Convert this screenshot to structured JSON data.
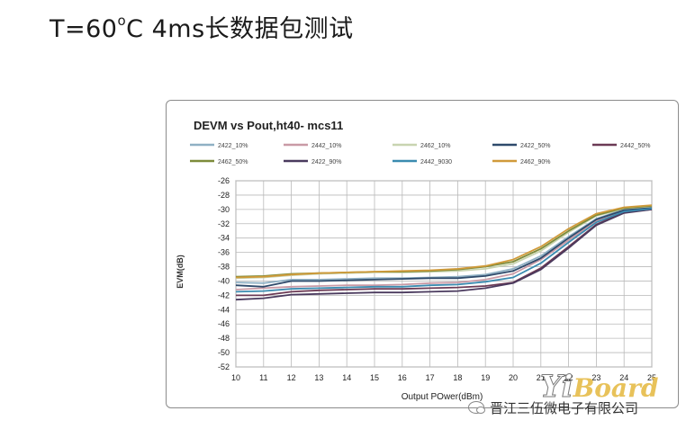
{
  "page": {
    "title_prefix": "T=60",
    "title_sup": "o",
    "title_rest": "C 4ms长数据包测试"
  },
  "chart_data": {
    "type": "line",
    "title": "DEVM vs Pout,ht40- mcs11",
    "xlabel": "Output  POwer(dBm)",
    "ylabel": "EVM(dB)",
    "x": [
      10,
      11,
      12,
      13,
      14,
      15,
      16,
      17,
      18,
      19,
      20,
      21,
      22,
      23,
      24,
      25
    ],
    "x_ticks": [
      "10",
      "11",
      "12",
      "13",
      "14",
      "15",
      "16",
      "17",
      "18",
      "19",
      "20",
      "21",
      "22",
      "23",
      "24",
      "25"
    ],
    "xlim": [
      10,
      25
    ],
    "ylim": [
      -52,
      -26
    ],
    "y_ticks": [
      -26,
      -28,
      -30,
      -32,
      -34,
      -36,
      -38,
      -40,
      -42,
      -44,
      -46,
      -48,
      -50,
      -52
    ],
    "y_tick_labels": [
      "-26",
      "-28",
      "-30",
      "-32",
      "-34",
      "-36",
      "-38",
      "-40",
      "-42",
      "-44",
      "-46",
      "-48",
      "-50",
      "-52"
    ],
    "grid": true,
    "legend_position": "top",
    "series": [
      {
        "name": "2422_10%",
        "color": "#8fb0c4",
        "values": [
          -40.2,
          -40.3,
          -39.8,
          -39.8,
          -39.7,
          -39.6,
          -39.6,
          -39.5,
          -39.4,
          -39.1,
          -38.3,
          -36.5,
          -33.8,
          -31.3,
          -30.0,
          -29.7
        ]
      },
      {
        "name": "2442_10%",
        "color": "#c99aa6",
        "values": [
          -41.2,
          -41.0,
          -40.8,
          -40.7,
          -40.6,
          -40.6,
          -40.5,
          -40.3,
          -40.2,
          -39.8,
          -39.0,
          -37.0,
          -34.3,
          -31.6,
          -30.2,
          -29.8
        ]
      },
      {
        "name": "2462_10%",
        "color": "#c8d4b0",
        "values": [
          -39.6,
          -39.5,
          -39.2,
          -39.0,
          -38.9,
          -38.8,
          -38.8,
          -38.7,
          -38.6,
          -38.3,
          -37.6,
          -35.8,
          -33.2,
          -30.9,
          -29.9,
          -29.6
        ]
      },
      {
        "name": "2422_50%",
        "color": "#2e4a6b",
        "values": [
          -40.6,
          -40.8,
          -40.0,
          -40.0,
          -39.9,
          -39.8,
          -39.7,
          -39.6,
          -39.6,
          -39.3,
          -38.6,
          -36.8,
          -34.0,
          -31.4,
          -30.1,
          -29.8
        ]
      },
      {
        "name": "2442_50%",
        "color": "#6b3a55",
        "values": [
          -42.0,
          -42.0,
          -41.5,
          -41.3,
          -41.2,
          -41.1,
          -41.1,
          -41.0,
          -40.9,
          -40.7,
          -40.2,
          -38.2,
          -35.2,
          -32.1,
          -30.4,
          -30.0
        ]
      },
      {
        "name": "2462_50%",
        "color": "#7d8b3a",
        "values": [
          -39.4,
          -39.3,
          -39.0,
          -38.9,
          -38.8,
          -38.7,
          -38.7,
          -38.6,
          -38.4,
          -38.0,
          -37.3,
          -35.5,
          -33.0,
          -30.8,
          -29.8,
          -29.5
        ]
      },
      {
        "name": "2422_90%",
        "color": "#4a3a5e",
        "values": [
          -42.6,
          -42.4,
          -41.9,
          -41.8,
          -41.7,
          -41.6,
          -41.6,
          -41.5,
          -41.4,
          -41.0,
          -40.3,
          -38.4,
          -35.4,
          -32.2,
          -30.5,
          -30.0
        ]
      },
      {
        "name": "2442_9030",
        "color": "#3a8bb0",
        "values": [
          -41.5,
          -41.4,
          -41.1,
          -41.0,
          -40.9,
          -40.8,
          -40.8,
          -40.6,
          -40.5,
          -40.1,
          -39.5,
          -37.5,
          -34.6,
          -31.8,
          -30.3,
          -29.9
        ]
      },
      {
        "name": "2462_90%",
        "color": "#d09a3a",
        "values": [
          -39.5,
          -39.4,
          -39.1,
          -38.9,
          -38.8,
          -38.7,
          -38.6,
          -38.5,
          -38.3,
          -37.9,
          -37.0,
          -35.2,
          -32.7,
          -30.6,
          -29.7,
          -29.4
        ]
      }
    ]
  },
  "watermark": {
    "part1": "Yi",
    "part2": "Board"
  },
  "credit": {
    "text": "晋江三伍微电子有限公司"
  }
}
